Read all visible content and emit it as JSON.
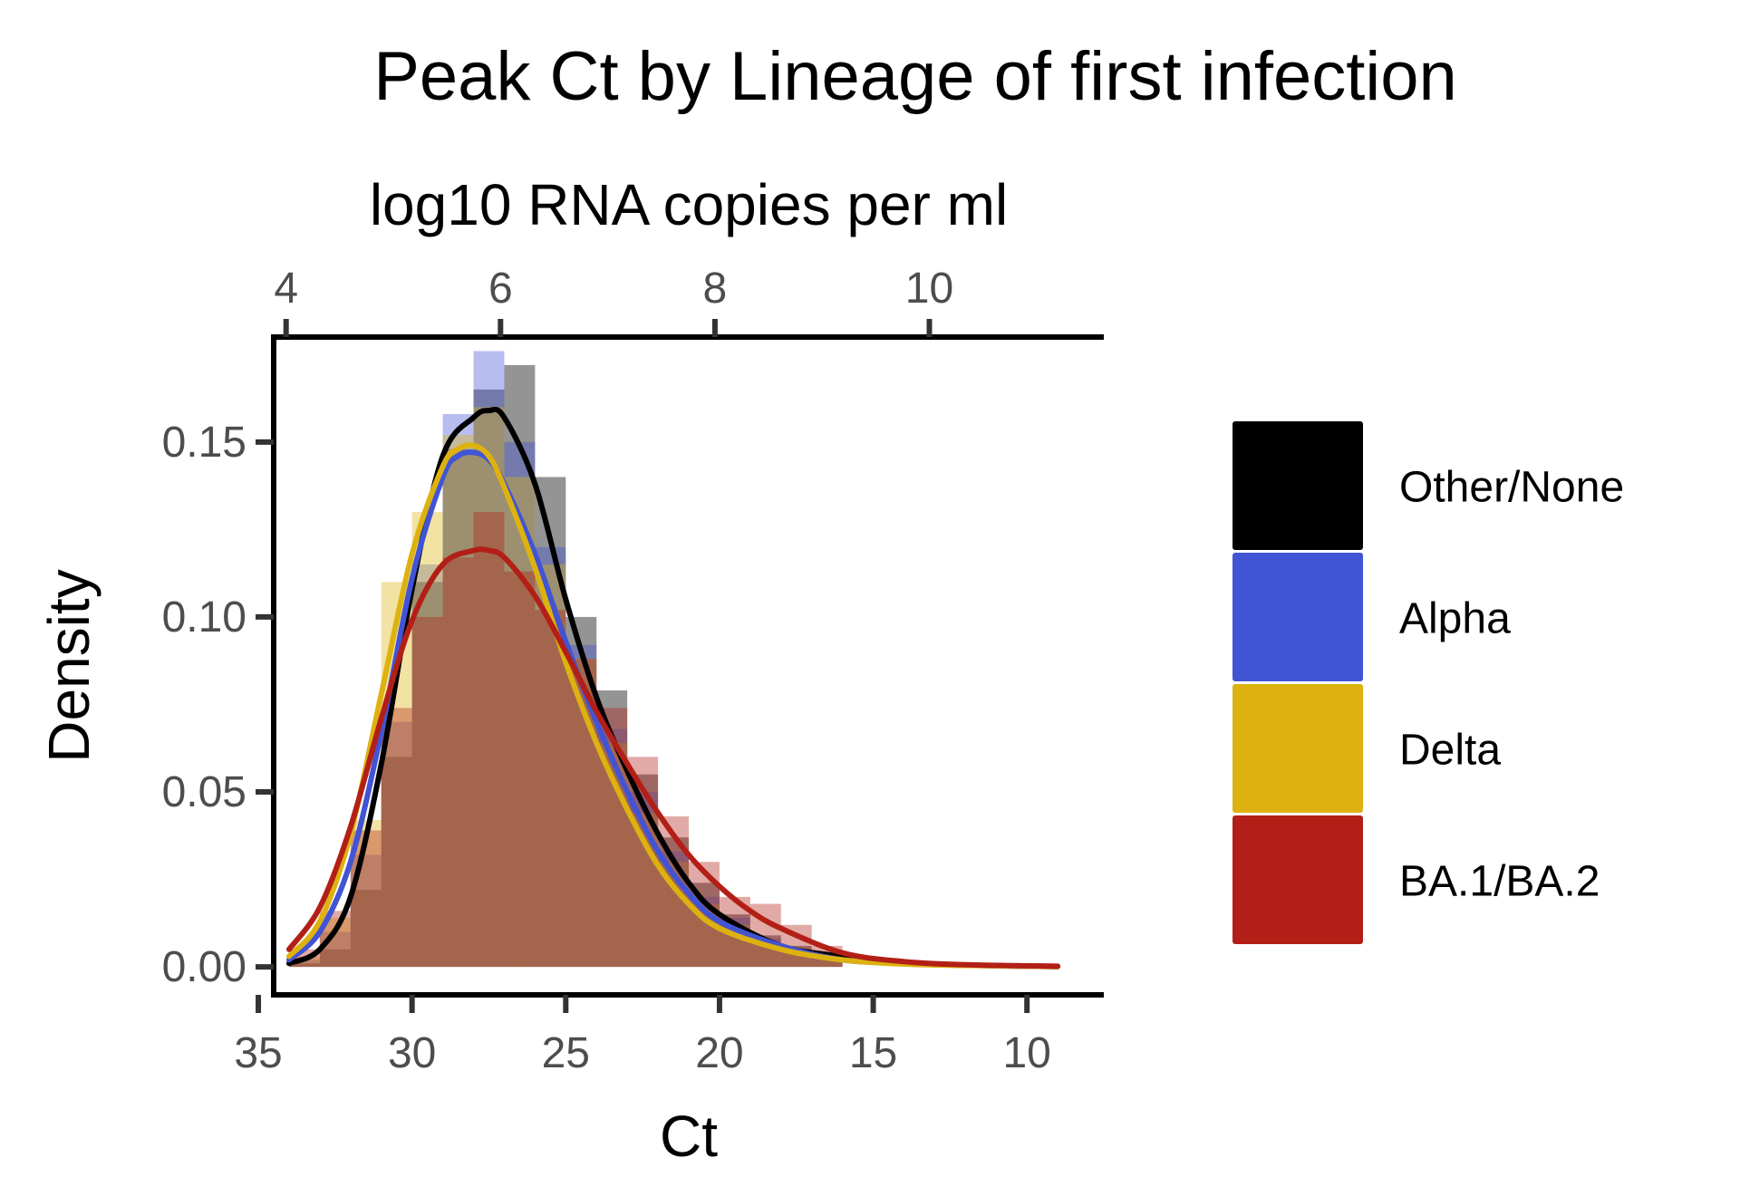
{
  "chart_data": {
    "type": "area",
    "title": "Peak Ct by Lineage of first infection",
    "xlabel": "Ct",
    "ylabel": "Density",
    "secondary_xlabel": "log10 RNA copies per ml",
    "x_reversed": true,
    "xlim": [
      34.5,
      7.5
    ],
    "ylim": [
      -0.008,
      0.18
    ],
    "x_ticks": [
      35,
      30,
      25,
      20,
      15,
      10
    ],
    "y_ticks": [
      0.0,
      0.05,
      0.1,
      0.15
    ],
    "y_tick_labels": [
      "0.00",
      "0.05",
      "0.10",
      "0.15"
    ],
    "secondary_x_ticks": [
      4,
      6,
      8,
      10
    ],
    "grid": false,
    "legend_position": "right",
    "series": [
      {
        "name": "Other/None",
        "color": "#000000",
        "curve": {
          "x": [
            34,
            33,
            32,
            31,
            30,
            29,
            28,
            27.5,
            27,
            26,
            25,
            24,
            23,
            22,
            21,
            20,
            18,
            16,
            14,
            12,
            10,
            9
          ],
          "y": [
            0.001,
            0.005,
            0.02,
            0.058,
            0.108,
            0.146,
            0.157,
            0.159,
            0.157,
            0.138,
            0.105,
            0.077,
            0.056,
            0.038,
            0.024,
            0.015,
            0.006,
            0.003,
            0.001,
            0.0005,
            0.0002,
            0.0001
          ]
        },
        "histogram": {
          "bin_edges": [
            34,
            33,
            32,
            31,
            30,
            29,
            28,
            27,
            26,
            25,
            24,
            23,
            22,
            21,
            20,
            19,
            18,
            17,
            16
          ],
          "values": [
            0.001,
            0.005,
            0.022,
            0.06,
            0.11,
            0.148,
            0.165,
            0.172,
            0.14,
            0.1,
            0.079,
            0.055,
            0.037,
            0.024,
            0.015,
            0.009,
            0.006,
            0.003
          ]
        }
      },
      {
        "name": "Alpha",
        "color": "#4154D4",
        "curve": {
          "x": [
            34,
            33,
            32,
            31,
            30,
            29,
            28.5,
            28,
            27.5,
            27,
            26,
            25,
            24,
            23,
            22,
            21,
            20,
            18,
            16,
            14,
            12,
            10,
            9
          ],
          "y": [
            0.002,
            0.01,
            0.03,
            0.067,
            0.111,
            0.14,
            0.146,
            0.147,
            0.145,
            0.138,
            0.118,
            0.093,
            0.07,
            0.05,
            0.033,
            0.021,
            0.013,
            0.006,
            0.002,
            0.001,
            0.0005,
            0.0002,
            0.0001
          ]
        },
        "histogram": {
          "bin_edges": [
            34,
            33,
            32,
            31,
            30,
            29,
            28,
            27,
            26,
            25,
            24,
            23,
            22,
            21,
            20,
            19,
            18,
            17,
            16
          ],
          "values": [
            0.002,
            0.01,
            0.032,
            0.07,
            0.115,
            0.158,
            0.176,
            0.15,
            0.12,
            0.092,
            0.068,
            0.05,
            0.033,
            0.02,
            0.014,
            0.008,
            0.005,
            0.003
          ]
        }
      },
      {
        "name": "Delta",
        "color": "#DDB210",
        "curve": {
          "x": [
            34,
            33,
            32,
            31,
            30,
            29,
            28.5,
            28,
            27.5,
            27,
            26,
            25,
            24,
            23,
            22,
            21,
            20,
            18,
            16,
            14,
            12,
            10,
            9
          ],
          "y": [
            0.003,
            0.013,
            0.038,
            0.078,
            0.118,
            0.143,
            0.148,
            0.149,
            0.146,
            0.137,
            0.114,
            0.087,
            0.064,
            0.045,
            0.029,
            0.018,
            0.011,
            0.005,
            0.002,
            0.0008,
            0.0004,
            0.0002,
            0.0001
          ]
        },
        "histogram": {
          "bin_edges": [
            34,
            33,
            32,
            31,
            30,
            29,
            28,
            27,
            26,
            25,
            24,
            23,
            22,
            21,
            20,
            19,
            18,
            17,
            16
          ],
          "values": [
            0.003,
            0.014,
            0.042,
            0.11,
            0.13,
            0.152,
            0.16,
            0.14,
            0.115,
            0.088,
            0.064,
            0.044,
            0.03,
            0.018,
            0.012,
            0.007,
            0.004,
            0.002
          ]
        }
      },
      {
        "name": "BA.1/BA.2",
        "color": "#B31F16",
        "curve": {
          "x": [
            34,
            33,
            32,
            31,
            30,
            29,
            28,
            27.5,
            27,
            26,
            25,
            24,
            23,
            22,
            21,
            20,
            19,
            18,
            16,
            14,
            12,
            10,
            9
          ],
          "y": [
            0.005,
            0.017,
            0.04,
            0.071,
            0.099,
            0.115,
            0.119,
            0.119,
            0.117,
            0.106,
            0.09,
            0.073,
            0.058,
            0.044,
            0.032,
            0.023,
            0.016,
            0.011,
            0.004,
            0.0015,
            0.0006,
            0.0003,
            0.0002
          ]
        },
        "histogram": {
          "bin_edges": [
            34,
            33,
            32,
            31,
            30,
            29,
            28,
            27,
            26,
            25,
            24,
            23,
            22,
            21,
            20,
            19,
            18,
            17,
            16
          ],
          "values": [
            0.005,
            0.016,
            0.039,
            0.074,
            0.1,
            0.117,
            0.13,
            0.113,
            0.102,
            0.088,
            0.074,
            0.06,
            0.043,
            0.03,
            0.02,
            0.018,
            0.012,
            0.006
          ]
        }
      }
    ]
  }
}
